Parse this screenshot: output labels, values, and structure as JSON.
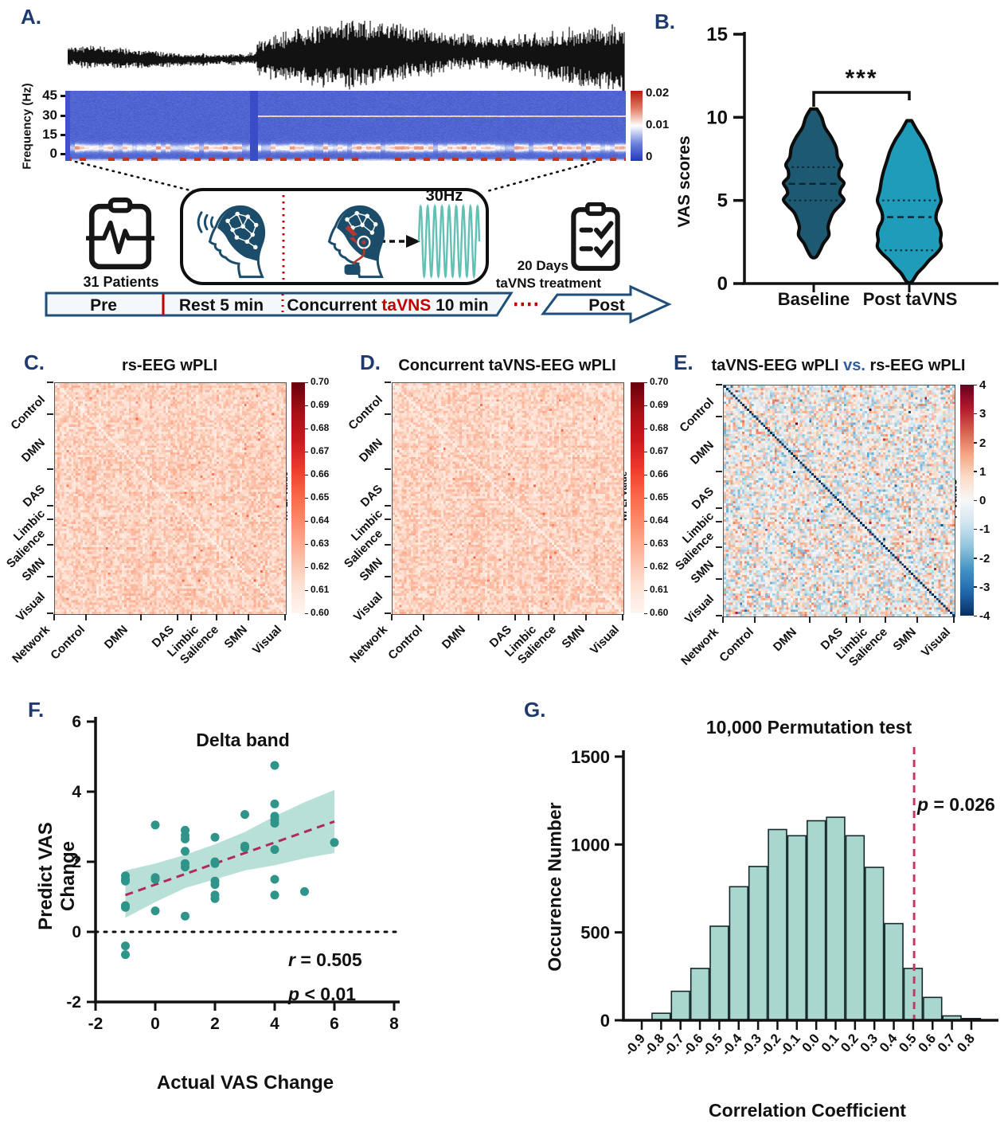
{
  "panels": {
    "a": {
      "label": "A.",
      "freq_axis_label": "Frequency (Hz)",
      "patients_label": "31 Patients",
      "stim_freq_label": "30Hz",
      "days_label": "20 Days",
      "treatment_label": "taVNS treatment",
      "timeline": {
        "pre": "Pre",
        "rest": "Rest 5 min",
        "concurrent_pre": "Concurrent ",
        "concurrent_em": "taVNS",
        "concurrent_post": " 10 min",
        "post": "Post"
      }
    },
    "b": {
      "label": "B.",
      "ylabel": "VAS scores",
      "significance": "***",
      "group_labels": [
        "Baseline",
        "Post taVNS"
      ]
    },
    "c": {
      "label": "C.",
      "title": "rs-EEG wPLI",
      "colorbar_label": "wPLI Value"
    },
    "d": {
      "label": "D.",
      "title": "Concurrent taVNS-EEG wPLI",
      "colorbar_label": "wPLI Value"
    },
    "e": {
      "label": "E.",
      "title_pre": "taVNS-EEG wPLI ",
      "title_vs": "vs.",
      "title_post": " rs-EEG wPLI",
      "colorbar_label": "T Value"
    },
    "f": {
      "label": "F.",
      "title": "Delta band",
      "xlabel": "Actual VAS Change",
      "ylabel": "Predict VAS Change",
      "r_label": "r",
      "r_value": " = 0.505",
      "p_label": "p",
      "p_value": " < 0.01"
    },
    "g": {
      "label": "G.",
      "title": "10,000 Permutation test",
      "xlabel": "Correlation Coefficient",
      "ylabel": "Occurence Number",
      "p_label": "p",
      "p_value": " = 0.026"
    }
  },
  "network_labels": [
    "Control",
    "DMN",
    "DAS",
    "Limbic",
    "Salience",
    "SMN",
    "Visual"
  ],
  "network_corner_label": "Network",
  "network_boundaries": [
    0,
    0.137,
    0.375,
    0.533,
    0.592,
    0.702,
    0.842,
    1
  ],
  "chart_data": [
    {
      "id": "eeg_trace",
      "type": "line",
      "description": "Raw EEG amplitude trace; amplitude increases after taVNS onset",
      "amplitude_segments": [
        {
          "end_fraction": 0.34,
          "relative_amplitude": 0.33
        },
        {
          "end_fraction": 1.0,
          "relative_amplitude": 1.0
        }
      ],
      "color": "#121212"
    },
    {
      "id": "spectrogram",
      "type": "heatmap",
      "ylabel": "Frequency (Hz)",
      "yticks": [
        45,
        30,
        15,
        0
      ],
      "ylim": [
        0,
        47
      ],
      "colorbar_ticks": [
        "0.02",
        "0.01",
        "0"
      ],
      "colorbar_range": [
        0,
        0.02
      ],
      "palette": "blue-white-red",
      "features": {
        "stim_line_hz": 30,
        "stim_onset_fraction": 0.34,
        "alpha_band_hz": 8.5,
        "hot_band_hz": 0.8
      }
    },
    {
      "id": "vas_violin",
      "type": "area",
      "subtype": "violin",
      "ylabel": "VAS scores",
      "ylim": [
        0,
        15
      ],
      "yticks": [
        15,
        10,
        5,
        0
      ],
      "significance": "***",
      "groups": [
        {
          "name": "Baseline",
          "color": "#1d5a72",
          "median": 6,
          "q1": 5,
          "q3": 7,
          "min": 1.6,
          "max": 10.5,
          "profile": [
            [
              10.5,
              0.02
            ],
            [
              10.0,
              0.05
            ],
            [
              9.4,
              0.07
            ],
            [
              8.8,
              0.11
            ],
            [
              8.2,
              0.14
            ],
            [
              7.6,
              0.15
            ],
            [
              7.15,
              0.175
            ],
            [
              6.8,
              0.16
            ],
            [
              6.4,
              0.16
            ],
            [
              6.05,
              0.19
            ],
            [
              5.7,
              0.17
            ],
            [
              5.4,
              0.165
            ],
            [
              5.05,
              0.19
            ],
            [
              4.7,
              0.165
            ],
            [
              4.3,
              0.125
            ],
            [
              3.9,
              0.105
            ],
            [
              3.4,
              0.09
            ],
            [
              2.9,
              0.095
            ],
            [
              2.4,
              0.06
            ],
            [
              2.0,
              0.04
            ],
            [
              1.6,
              0.015
            ]
          ]
        },
        {
          "name": "Post taVNS",
          "color": "#1f9cba",
          "median": 4,
          "q1": 2,
          "q3": 5,
          "min": 0.1,
          "max": 9.8,
          "profile": [
            [
              9.8,
              0.015
            ],
            [
              9.2,
              0.05
            ],
            [
              8.6,
              0.09
            ],
            [
              8.0,
              0.12
            ],
            [
              7.4,
              0.14
            ],
            [
              6.8,
              0.16
            ],
            [
              6.2,
              0.175
            ],
            [
              5.6,
              0.185
            ],
            [
              5.0,
              0.2
            ],
            [
              4.6,
              0.185
            ],
            [
              4.2,
              0.17
            ],
            [
              3.8,
              0.17
            ],
            [
              3.4,
              0.19
            ],
            [
              3.0,
              0.2
            ],
            [
              2.6,
              0.195
            ],
            [
              2.2,
              0.2
            ],
            [
              1.8,
              0.17
            ],
            [
              1.4,
              0.125
            ],
            [
              1.0,
              0.09
            ],
            [
              0.6,
              0.05
            ],
            [
              0.1,
              0.015
            ]
          ]
        }
      ]
    },
    {
      "id": "rs_wpli",
      "type": "heatmap",
      "title": "rs-EEG wPLI",
      "n": 100,
      "seed": 7,
      "palette": "Reds",
      "colorbar_label": "wPLI Value",
      "colorbar_range": [
        0.6,
        0.7
      ],
      "colorbar_ticks": [
        "0.70",
        "0.69",
        "0.68",
        "0.67",
        "0.66",
        "0.65",
        "0.64",
        "0.63",
        "0.62",
        "0.61",
        "0.60"
      ],
      "value_distribution": "wPLI ~ 0.61-0.66, diagonal ~ 0.60"
    },
    {
      "id": "tavns_wpli",
      "type": "heatmap",
      "title": "Concurrent taVNS-EEG wPLI",
      "n": 100,
      "seed": 13,
      "palette": "Reds",
      "colorbar_label": "wPLI Value",
      "colorbar_range": [
        0.6,
        0.7
      ],
      "colorbar_ticks": [
        "0.70",
        "0.69",
        "0.68",
        "0.67",
        "0.66",
        "0.65",
        "0.64",
        "0.63",
        "0.62",
        "0.61",
        "0.60"
      ],
      "value_distribution": "wPLI ~ 0.61-0.66, diagonal ~ 0.60"
    },
    {
      "id": "t_contrast",
      "type": "heatmap",
      "title": "taVNS-EEG wPLI vs. rs-EEG wPLI",
      "n": 100,
      "seed": 29,
      "palette": "RdBu_r",
      "colorbar_label": "T Value",
      "colorbar_range": [
        -4,
        4
      ],
      "colorbar_ticks": [
        "4",
        "3",
        "2",
        "1",
        "0",
        "-1",
        "-2",
        "-3",
        "-4"
      ],
      "diagonal_value": -4,
      "value_distribution": "T ~ N(0, 1.3)"
    },
    {
      "id": "delta_scatter",
      "type": "scatter",
      "title": "Delta band",
      "xlabel": "Actual VAS Change",
      "ylabel": "Predict VAS Change",
      "xlim": [
        -2,
        8
      ],
      "ylim": [
        -2,
        6
      ],
      "xticks": [
        -2,
        0,
        2,
        4,
        6,
        8
      ],
      "yticks": [
        6,
        4,
        2,
        0,
        -2
      ],
      "r": 0.505,
      "p": "< 0.01",
      "point_color": "#2f948a",
      "regression": {
        "x1": -1,
        "y1": 1.05,
        "x2": 6,
        "y2": 3.15,
        "color": "#b3295c"
      },
      "ci_band": {
        "color": "#a8d8cc",
        "upper": [
          [
            -1,
            1.75
          ],
          [
            0,
            1.95
          ],
          [
            1,
            2.2
          ],
          [
            2,
            2.5
          ],
          [
            3,
            2.85
          ],
          [
            4,
            3.3
          ],
          [
            5,
            3.7
          ],
          [
            6,
            4.05
          ]
        ],
        "lower": [
          [
            -1,
            0.4
          ],
          [
            0,
            0.85
          ],
          [
            1,
            1.25
          ],
          [
            2,
            1.5
          ],
          [
            3,
            1.75
          ],
          [
            4,
            1.9
          ],
          [
            5,
            2.1
          ],
          [
            6,
            2.25
          ]
        ]
      },
      "points": [
        [
          -1,
          1.6
        ],
        [
          -1,
          1.5
        ],
        [
          -1,
          1.45
        ],
        [
          -1,
          0.75
        ],
        [
          -1,
          0.7
        ],
        [
          -1,
          -0.4
        ],
        [
          -1,
          -0.65
        ],
        [
          0,
          3.05
        ],
        [
          0,
          1.55
        ],
        [
          0,
          1.5
        ],
        [
          0,
          0.6
        ],
        [
          1,
          2.9
        ],
        [
          1,
          2.75
        ],
        [
          1,
          2.65
        ],
        [
          1,
          2.3
        ],
        [
          1,
          1.95
        ],
        [
          1,
          1.85
        ],
        [
          1,
          0.45
        ],
        [
          2,
          2.7
        ],
        [
          2,
          2.0
        ],
        [
          2,
          1.95
        ],
        [
          2,
          1.45
        ],
        [
          2,
          1.35
        ],
        [
          2,
          1.05
        ],
        [
          2,
          0.95
        ],
        [
          3,
          3.35
        ],
        [
          3,
          2.45
        ],
        [
          3,
          2.4
        ],
        [
          4,
          4.75
        ],
        [
          4,
          3.65
        ],
        [
          4,
          3.3
        ],
        [
          4,
          3.2
        ],
        [
          4,
          3.1
        ],
        [
          4,
          2.35
        ],
        [
          4,
          1.5
        ],
        [
          4,
          1.05
        ],
        [
          5,
          1.15
        ],
        [
          6,
          2.55
        ]
      ]
    },
    {
      "id": "permutation_hist",
      "type": "bar",
      "title": "10,000 Permutation test",
      "xlabel": "Correlation Coefficient",
      "ylabel": "Occurence Number",
      "ylim": [
        0,
        1500
      ],
      "yticks": [
        0,
        500,
        1000,
        1500
      ],
      "categories": [
        "-0.9",
        "-0.8",
        "-0.7",
        "-0.6",
        "-0.5",
        "-0.4",
        "-0.3",
        "-0.2",
        "-0.1",
        "0.0",
        "0.1",
        "0.2",
        "0.3",
        "0.4",
        "0.5",
        "0.6",
        "0.7",
        "0.8"
      ],
      "values": [
        0,
        40,
        165,
        295,
        535,
        760,
        875,
        1085,
        1050,
        1135,
        1155,
        1050,
        870,
        550,
        295,
        130,
        25,
        10
      ],
      "bar_color": "#a9d7ce",
      "bar_edge": "#16282d",
      "threshold_line": {
        "x": 0.505,
        "color": "#c23b5e"
      }
    }
  ]
}
